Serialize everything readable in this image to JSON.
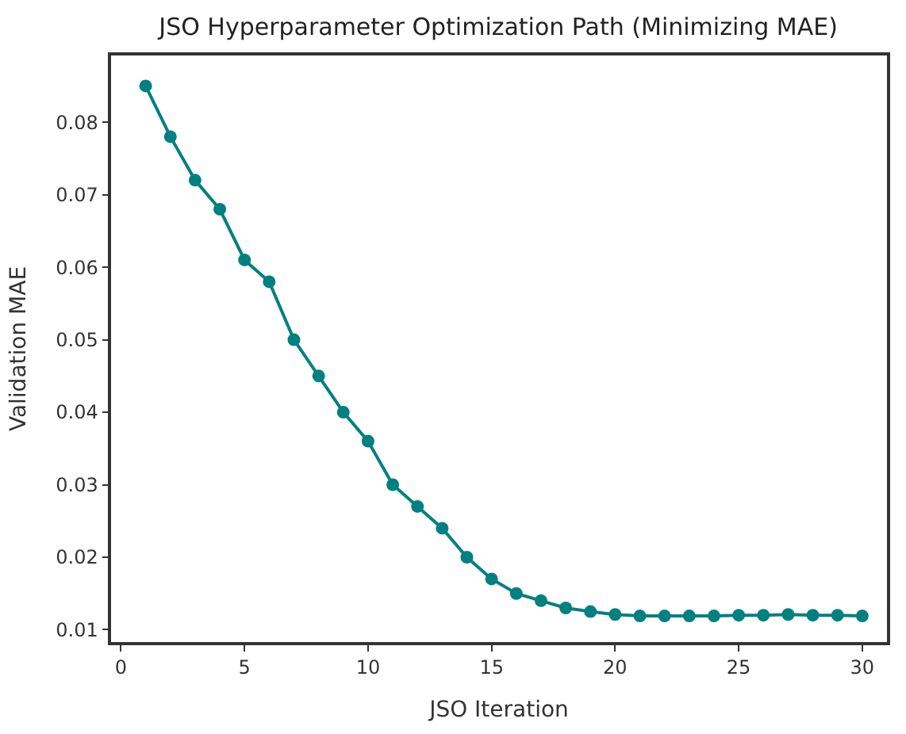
{
  "chart_data": {
    "type": "line",
    "title": "JSO Hyperparameter Optimization Path (Minimizing MAE)",
    "xlabel": "JSO Iteration",
    "ylabel": "Validation MAE",
    "x": [
      1,
      2,
      3,
      4,
      5,
      6,
      7,
      8,
      9,
      10,
      11,
      12,
      13,
      14,
      15,
      16,
      17,
      18,
      19,
      20,
      21,
      22,
      23,
      24,
      25,
      26,
      27,
      28,
      29,
      30
    ],
    "series": [
      {
        "color": "#008080",
        "values": [
          0.085,
          0.078,
          0.072,
          0.068,
          0.061,
          0.058,
          0.05,
          0.045,
          0.04,
          0.036,
          0.03,
          0.027,
          0.024,
          0.02,
          0.017,
          0.015,
          0.014,
          0.013,
          0.0125,
          0.0121,
          0.0119,
          0.0119,
          0.0119,
          0.0119,
          0.012,
          0.012,
          0.0121,
          0.012,
          0.012,
          0.0119
        ]
      }
    ],
    "xlim": [
      -0.4,
      31.0
    ],
    "ylim": [
      0.0083,
      0.0892
    ],
    "xticks": [
      0,
      5,
      10,
      15,
      20,
      25,
      30
    ],
    "yticks": [
      0.01,
      0.02,
      0.03,
      0.04,
      0.05,
      0.06,
      0.07,
      0.08
    ],
    "marker": "circle",
    "line_style": "solid",
    "legend": false
  }
}
